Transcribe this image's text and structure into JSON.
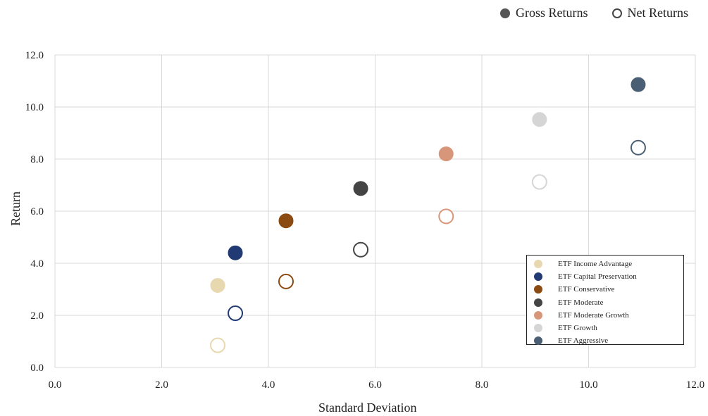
{
  "legend_top": {
    "gross_label": "Gross Returns",
    "net_label": "Net Returns"
  },
  "chart_data": {
    "type": "scatter",
    "title": "",
    "xlabel": "Standard Deviation",
    "ylabel": "Return",
    "xlim": [
      0,
      12
    ],
    "ylim": [
      0,
      12
    ],
    "x_ticks": [
      "0.0",
      "2.0",
      "4.0",
      "6.0",
      "8.0",
      "10.0",
      "12.0"
    ],
    "y_ticks": [
      "0.0",
      "2.0",
      "4.0",
      "6.0",
      "8.0",
      "10.0",
      "12.0"
    ],
    "grid": true,
    "legend_position": "bottom-right",
    "series": [
      {
        "name": "ETF Income Advantage",
        "color": "#E8D8B0",
        "gross": {
          "x": 3.05,
          "y": 3.15
        },
        "net": {
          "x": 3.05,
          "y": 0.85
        }
      },
      {
        "name": "ETF Capital Preservation",
        "color": "#213A73",
        "gross": {
          "x": 3.38,
          "y": 4.4
        },
        "net": {
          "x": 3.38,
          "y": 2.08
        }
      },
      {
        "name": "ETF Conservative",
        "color": "#8B4A12",
        "gross": {
          "x": 4.33,
          "y": 5.63
        },
        "net": {
          "x": 4.33,
          "y": 3.3
        }
      },
      {
        "name": "ETF Moderate",
        "color": "#444444",
        "gross": {
          "x": 5.73,
          "y": 6.87
        },
        "net": {
          "x": 5.73,
          "y": 4.52
        }
      },
      {
        "name": "ETF Moderate Growth",
        "color": "#D7967A",
        "gross": {
          "x": 7.33,
          "y": 8.2
        },
        "net": {
          "x": 7.33,
          "y": 5.8
        }
      },
      {
        "name": "ETF Growth",
        "color": "#D5D5D5",
        "gross": {
          "x": 9.08,
          "y": 9.52
        },
        "net": {
          "x": 9.08,
          "y": 7.12
        }
      },
      {
        "name": "ETF Aggressive",
        "color": "#4A5F73",
        "gross": {
          "x": 10.93,
          "y": 10.86
        },
        "net": {
          "x": 10.93,
          "y": 8.44
        }
      }
    ]
  }
}
